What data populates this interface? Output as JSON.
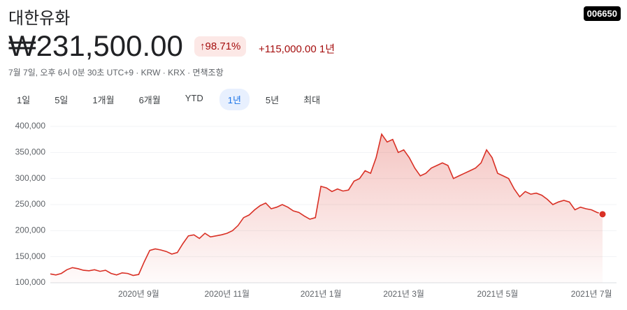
{
  "header": {
    "title": "대한유화",
    "ticker": "006650",
    "price": "₩231,500.00",
    "change_percent": "98.71%",
    "change": "+115,000.00",
    "period": "1년",
    "subtitle": "7월 7일, 오후 6시 0분 30초 UTC+9 · KRW · KRX · ",
    "disclaimer": "면책조항"
  },
  "tabs": [
    "1일",
    "5일",
    "1개월",
    "6개월",
    "YTD",
    "1년",
    "5년",
    "최대"
  ],
  "selected_tab": "1년",
  "chart_data": {
    "type": "area",
    "color": "#d93025",
    "grid": true,
    "categories": [
      null,
      null,
      null,
      null,
      null,
      null,
      null,
      null,
      null,
      null,
      null,
      null,
      null,
      null,
      null,
      null,
      "2020년 9월",
      null,
      null,
      null,
      null,
      null,
      null,
      null,
      null,
      null,
      null,
      null,
      null,
      null,
      null,
      null,
      "2020년 11월",
      null,
      null,
      null,
      null,
      null,
      null,
      null,
      null,
      null,
      null,
      null,
      null,
      null,
      null,
      null,
      null,
      "2021년 1월",
      null,
      null,
      null,
      null,
      null,
      null,
      null,
      null,
      null,
      null,
      null,
      null,
      null,
      null,
      "2021년 3월",
      null,
      null,
      null,
      null,
      null,
      null,
      null,
      null,
      null,
      null,
      null,
      null,
      null,
      null,
      null,
      null,
      "2021년 5월",
      null,
      null,
      null,
      null,
      null,
      null,
      null,
      null,
      null,
      null,
      null,
      null,
      null,
      null,
      null,
      null,
      "2021년 7월",
      null,
      null
    ],
    "values": [
      117000,
      115000,
      118000,
      125000,
      129000,
      127000,
      124000,
      123000,
      125000,
      122000,
      124000,
      118000,
      115000,
      119000,
      118000,
      114000,
      116000,
      140000,
      162000,
      165000,
      163000,
      160000,
      155000,
      158000,
      175000,
      190000,
      192000,
      185000,
      195000,
      188000,
      190000,
      192000,
      195000,
      200000,
      210000,
      225000,
      230000,
      240000,
      248000,
      253000,
      242000,
      245000,
      250000,
      245000,
      238000,
      235000,
      228000,
      222000,
      225000,
      285000,
      282000,
      275000,
      280000,
      276000,
      278000,
      295000,
      300000,
      315000,
      310000,
      340000,
      385000,
      370000,
      375000,
      350000,
      355000,
      340000,
      320000,
      305000,
      310000,
      320000,
      325000,
      330000,
      325000,
      300000,
      305000,
      310000,
      315000,
      320000,
      330000,
      355000,
      340000,
      310000,
      305000,
      300000,
      280000,
      265000,
      275000,
      270000,
      272000,
      268000,
      260000,
      250000,
      255000,
      258000,
      255000,
      240000,
      245000,
      242000,
      240000,
      235000,
      231500
    ],
    "ylim": [
      100000,
      400000
    ],
    "yticks": [
      {
        "value": 100000,
        "label": "100,000"
      },
      {
        "value": 150000,
        "label": "150,000"
      },
      {
        "value": 200000,
        "label": "200,000"
      },
      {
        "value": 250000,
        "label": "250,000"
      },
      {
        "value": 300000,
        "label": "300,000"
      },
      {
        "value": 350000,
        "label": "350,000"
      },
      {
        "value": 400000,
        "label": "400,000"
      }
    ]
  }
}
